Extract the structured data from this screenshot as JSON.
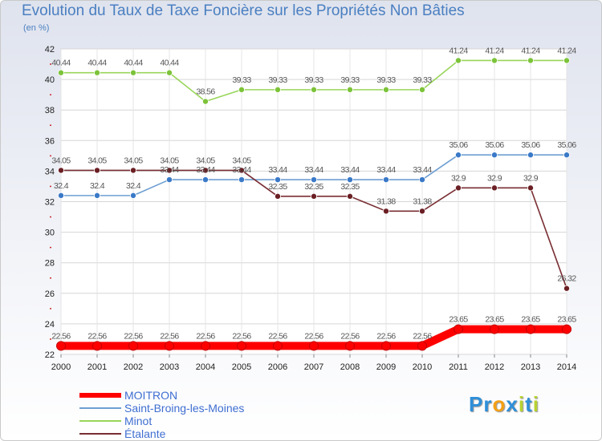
{
  "chart_data": {
    "type": "line",
    "title": "Evolution du Taux de Taxe Foncière sur les Propriétés Non Bâties",
    "unit_label": "(en %)",
    "xlabel": "",
    "ylabel": "",
    "ylim": [
      22,
      42
    ],
    "yticks": [
      22,
      24,
      26,
      28,
      30,
      32,
      34,
      36,
      38,
      40,
      42
    ],
    "grid": true,
    "x": [
      "2000",
      "2001",
      "2002",
      "2003",
      "2004",
      "2005",
      "2006",
      "2007",
      "2008",
      "2009",
      "2010",
      "2011",
      "2012",
      "2013",
      "2014"
    ],
    "series": [
      {
        "name": "MOITRON",
        "color": "#ff0000",
        "marker_color": "#ff0000",
        "values": [
          22.56,
          22.56,
          22.56,
          22.56,
          22.56,
          22.56,
          22.56,
          22.56,
          22.56,
          22.56,
          22.56,
          23.65,
          23.65,
          23.65,
          23.65
        ],
        "labels": [
          "22.56",
          "22.56",
          "22.56",
          "22.56",
          "22.56",
          "22.56",
          "22.56",
          "22.56",
          "22.56",
          "22.56",
          "22.56",
          "23.65",
          "23.65",
          "23.65",
          "23.65"
        ]
      },
      {
        "name": "Saint-Broing-les-Moines",
        "color": "#6e9fd2",
        "marker_color": "#3a79c8",
        "values": [
          32.4,
          32.4,
          32.4,
          33.44,
          33.44,
          33.44,
          33.44,
          33.44,
          33.44,
          33.44,
          33.44,
          35.06,
          35.06,
          35.06,
          35.06
        ],
        "labels": [
          "32.4",
          "32.4",
          "32.4",
          "33.44",
          "33.44",
          "33.44",
          "33.44",
          "33.44",
          "33.44",
          "33.44",
          "33.44",
          "35.06",
          "35.06",
          "35.06",
          "35.06"
        ]
      },
      {
        "name": "Minot",
        "color": "#99d55a",
        "marker_color": "#7cc33a",
        "values": [
          40.44,
          40.44,
          40.44,
          40.44,
          38.56,
          39.33,
          39.33,
          39.33,
          39.33,
          39.33,
          39.33,
          41.24,
          41.24,
          41.24,
          41.24
        ],
        "labels": [
          "40.44",
          "40.44",
          "40.44",
          "40.44",
          "38.56",
          "39.33",
          "39.33",
          "39.33",
          "39.33",
          "39.33",
          "39.33",
          "41.24",
          "41.24",
          "41.24",
          "41.24"
        ]
      },
      {
        "name": "Étalante",
        "color": "#7a2e33",
        "marker_color": "#6b1f24",
        "values": [
          34.05,
          34.05,
          34.05,
          34.05,
          34.05,
          34.05,
          32.35,
          32.35,
          32.35,
          31.38,
          31.38,
          32.9,
          32.9,
          32.9,
          26.32
        ],
        "labels": [
          "34.05",
          "34.05",
          "34.05",
          "34.05",
          "34.05",
          "34.05",
          "32.35",
          "32.35",
          "32.35",
          "31.38",
          "31.38",
          "32.9",
          "32.9",
          "32.9",
          "26.32"
        ]
      }
    ],
    "legend_position": "bottom-left"
  },
  "brand": {
    "letters": [
      "P",
      "r",
      "o",
      "x",
      "i",
      "t",
      "i"
    ],
    "colors": [
      "#2f8fd8",
      "#2f8fd8",
      "#f2a018",
      "#2f8fd8",
      "#b8d230",
      "#2f8fd8",
      "#b8d230"
    ]
  }
}
